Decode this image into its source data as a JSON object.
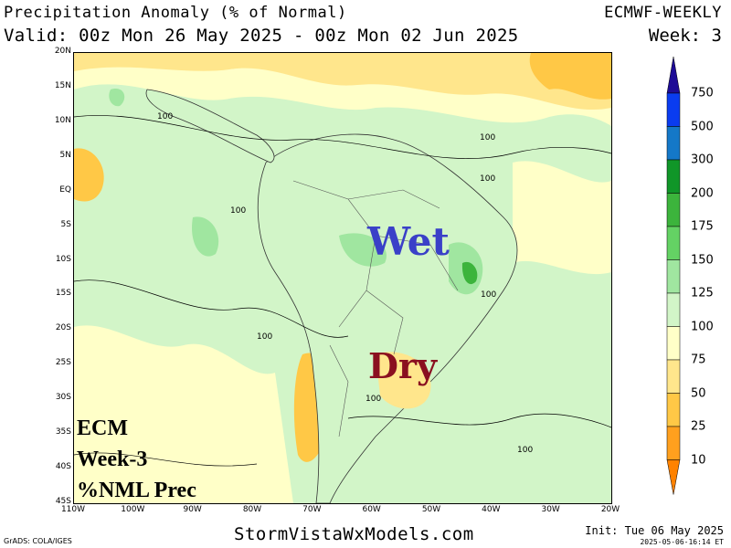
{
  "header": {
    "title_left": "Precipitation Anomaly (% of Normal)",
    "valid_line": "Valid: 00z Mon 26 May 2025 - 00z Mon 02 Jun 2025",
    "title_right": "ECMWF-WEEKLY",
    "week_line": "Week: 3"
  },
  "map": {
    "lat_ticks": [
      "20N",
      "15N",
      "10N",
      "5N",
      "EQ",
      "5S",
      "10S",
      "15S",
      "20S",
      "25S",
      "30S",
      "35S",
      "40S",
      "45S"
    ],
    "lon_ticks": [
      "110W",
      "100W",
      "90W",
      "80W",
      "70W",
      "60W",
      "50W",
      "40W",
      "30W",
      "20W"
    ],
    "contour_labels": [
      "100",
      "100",
      "100",
      "100",
      "100",
      "100",
      "100",
      "100"
    ],
    "overlay_wet": "Wet",
    "overlay_dry": "Dry",
    "ecm_lines": [
      "ECM",
      "Week-3",
      "%NML Prec"
    ]
  },
  "colorbar": {
    "labels": [
      "750",
      "500",
      "300",
      "200",
      "175",
      "150",
      "125",
      "100",
      "75",
      "50",
      "25",
      "10"
    ],
    "colors": [
      "#1e0c96",
      "#0a3cf0",
      "#1478c8",
      "#109628",
      "#3cb43c",
      "#64d264",
      "#a0e6a0",
      "#d2f5c8",
      "#ffffc8",
      "#ffe68c",
      "#ffc846",
      "#ffa01e",
      "#ff8200"
    ]
  },
  "footer": {
    "site": "StormVistaWxModels.com",
    "grads": "GrADS: COLA/IGES",
    "init": "Init: Tue 06 May 2025",
    "timestamp": "2025-05-06-16:14 ET"
  }
}
